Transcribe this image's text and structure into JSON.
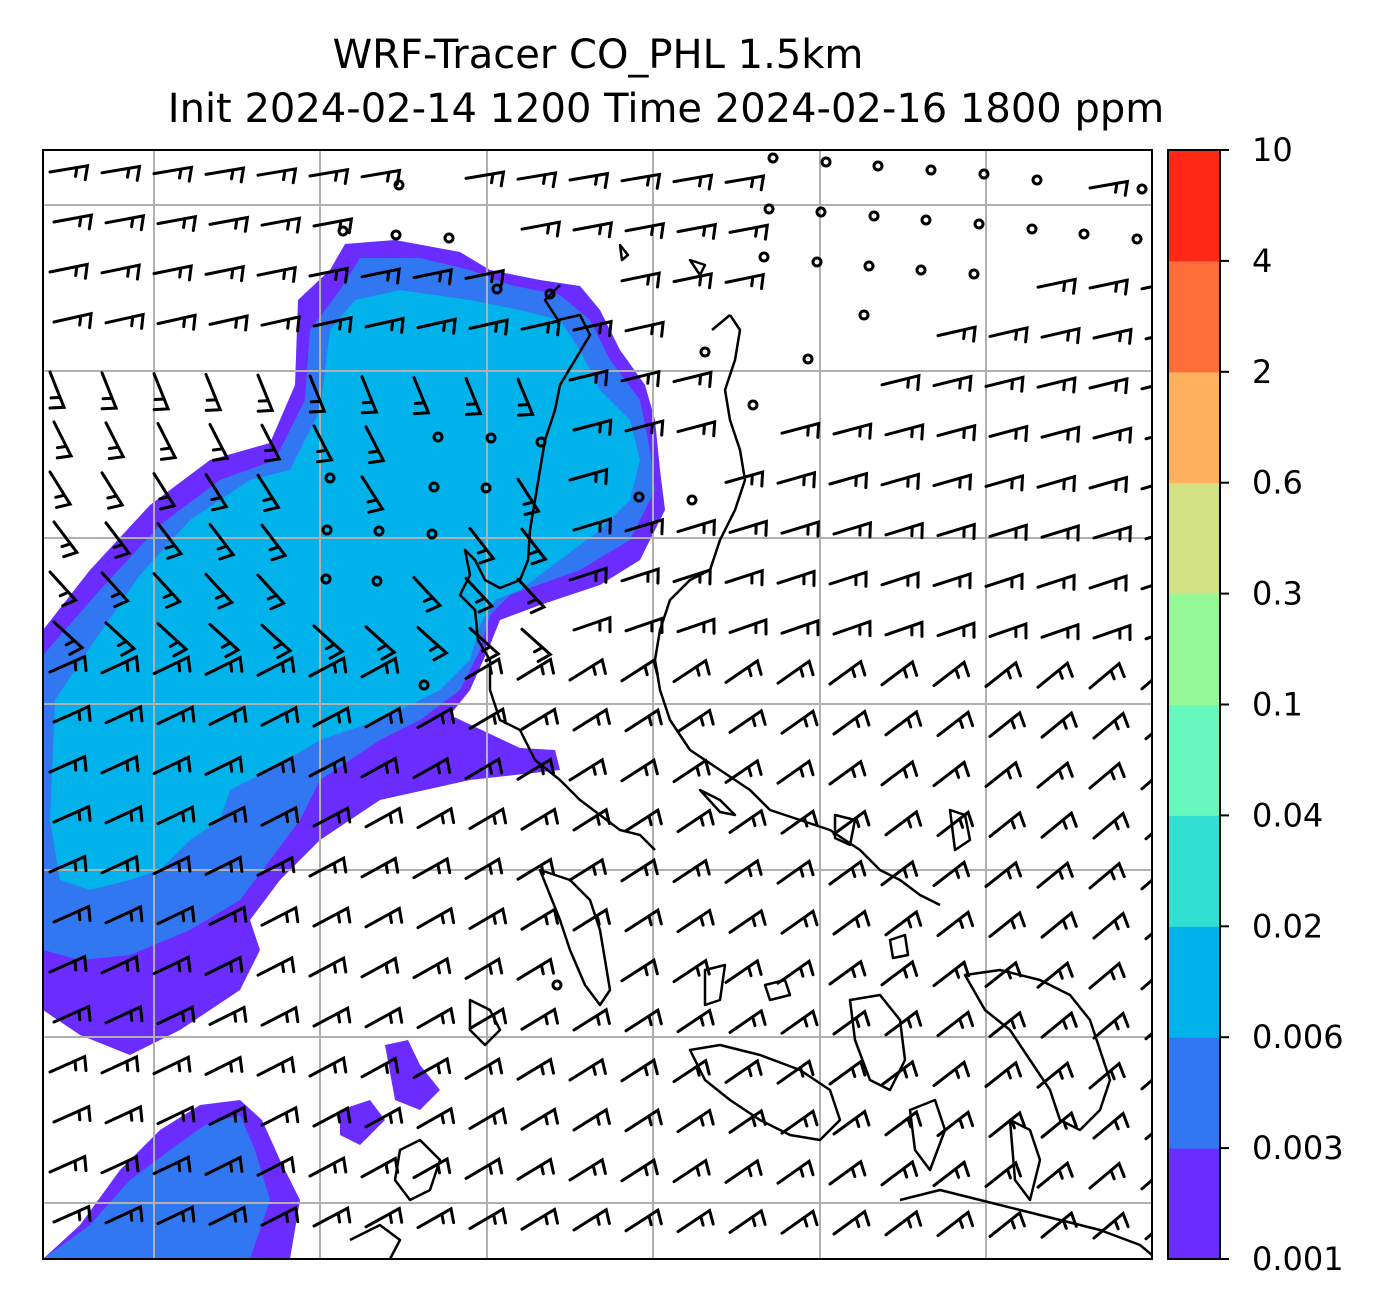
{
  "title": {
    "line1": "WRF-Tracer CO_PHL 1.5km",
    "line2": "Init 2024-02-14 1200 Time 2024-02-16 1800 ppm"
  },
  "colorbar": {
    "levels": [
      "0.001",
      "0.003",
      "0.006",
      "0.02",
      "0.04",
      "0.1",
      "0.3",
      "0.6",
      "2",
      "4",
      "10"
    ],
    "colors": [
      "#6a2cff",
      "#3277f2",
      "#02b2ea",
      "#33dfd2",
      "#66f8bc",
      "#95f998",
      "#d2e183",
      "#ffb15e",
      "#ff6e39",
      "#ff2716"
    ]
  },
  "map": {
    "grid": "on",
    "plume_colors": {
      "outer": "#6a2cff",
      "mid": "#3277f2",
      "core": "#02b2ea"
    },
    "coast_color": "#000000"
  }
}
